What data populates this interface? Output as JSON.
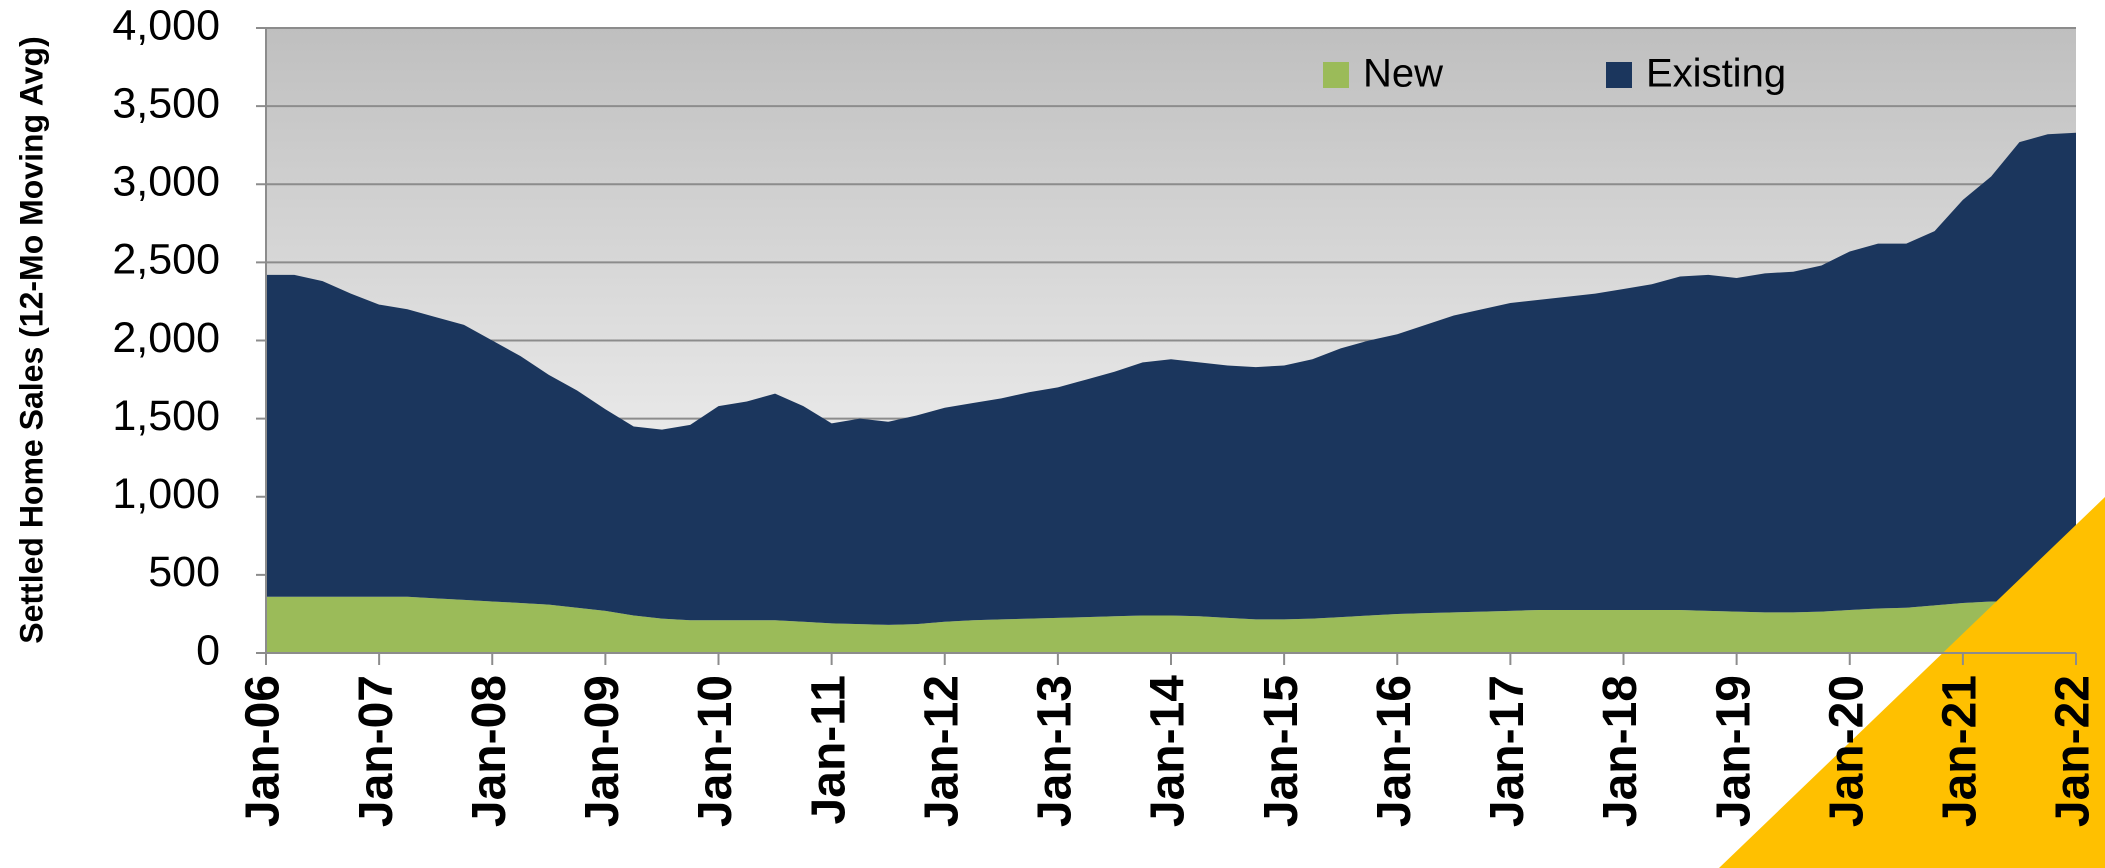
{
  "chart_data": {
    "type": "stacked_area",
    "y_axis_label": "Settled Home Sales (12-Mo Moving Avg)",
    "categories": [
      "Jan-06",
      null,
      null,
      null,
      "Jan-07",
      null,
      null,
      null,
      "Jan-08",
      null,
      null,
      null,
      "Jan-09",
      null,
      null,
      null,
      "Jan-10",
      null,
      null,
      null,
      "Jan-11",
      null,
      null,
      null,
      "Jan-12",
      null,
      null,
      null,
      "Jan-13",
      null,
      null,
      null,
      "Jan-14",
      null,
      null,
      null,
      "Jan-15",
      null,
      null,
      null,
      "Jan-16",
      null,
      null,
      null,
      "Jan-17",
      null,
      null,
      null,
      "Jan-18",
      null,
      null,
      null,
      "Jan-19",
      null,
      null,
      null,
      "Jan-20",
      null,
      null,
      null,
      "Jan-21",
      null,
      null,
      null,
      "Jan-22"
    ],
    "series": [
      {
        "name": "New",
        "color": "#9bbb59",
        "values": [
          360,
          360,
          360,
          360,
          360,
          360,
          350,
          340,
          330,
          320,
          310,
          290,
          270,
          240,
          220,
          210,
          210,
          210,
          210,
          200,
          190,
          185,
          180,
          185,
          200,
          210,
          215,
          220,
          225,
          230,
          235,
          240,
          240,
          235,
          225,
          215,
          215,
          220,
          230,
          240,
          250,
          255,
          260,
          265,
          270,
          275,
          275,
          275,
          275,
          275,
          275,
          270,
          265,
          260,
          260,
          265,
          275,
          285,
          290,
          305,
          320,
          330,
          330,
          320,
          310
        ]
      },
      {
        "name": "Existing",
        "color": "#1b365d",
        "values": [
          2060,
          2060,
          2020,
          1940,
          1870,
          1840,
          1800,
          1760,
          1670,
          1580,
          1470,
          1390,
          1290,
          1210,
          1210,
          1250,
          1370,
          1400,
          1450,
          1380,
          1280,
          1315,
          1300,
          1335,
          1370,
          1390,
          1415,
          1450,
          1475,
          1520,
          1565,
          1620,
          1640,
          1625,
          1615,
          1615,
          1625,
          1660,
          1720,
          1760,
          1790,
          1845,
          1900,
          1935,
          1970,
          1985,
          2005,
          2025,
          2055,
          2085,
          2135,
          2150,
          2135,
          2170,
          2180,
          2215,
          2295,
          2335,
          2330,
          2395,
          2580,
          2720,
          2940,
          3000,
          3020
        ]
      }
    ],
    "ylim": [
      0,
      4000
    ],
    "yticks": [
      0,
      {
        "value": 500,
        "label": "500"
      },
      {
        "value": 1000,
        "label": "1,000"
      },
      {
        "value": 1500,
        "label": "1,500"
      },
      {
        "value": 2000,
        "label": "2,000"
      },
      {
        "value": 2500,
        "label": "2,500"
      },
      {
        "value": 3000,
        "label": "3,000"
      },
      {
        "value": 3500,
        "label": "3,500"
      },
      {
        "value": 4000,
        "label": "4,000"
      }
    ],
    "grid": true,
    "legend": "top"
  }
}
